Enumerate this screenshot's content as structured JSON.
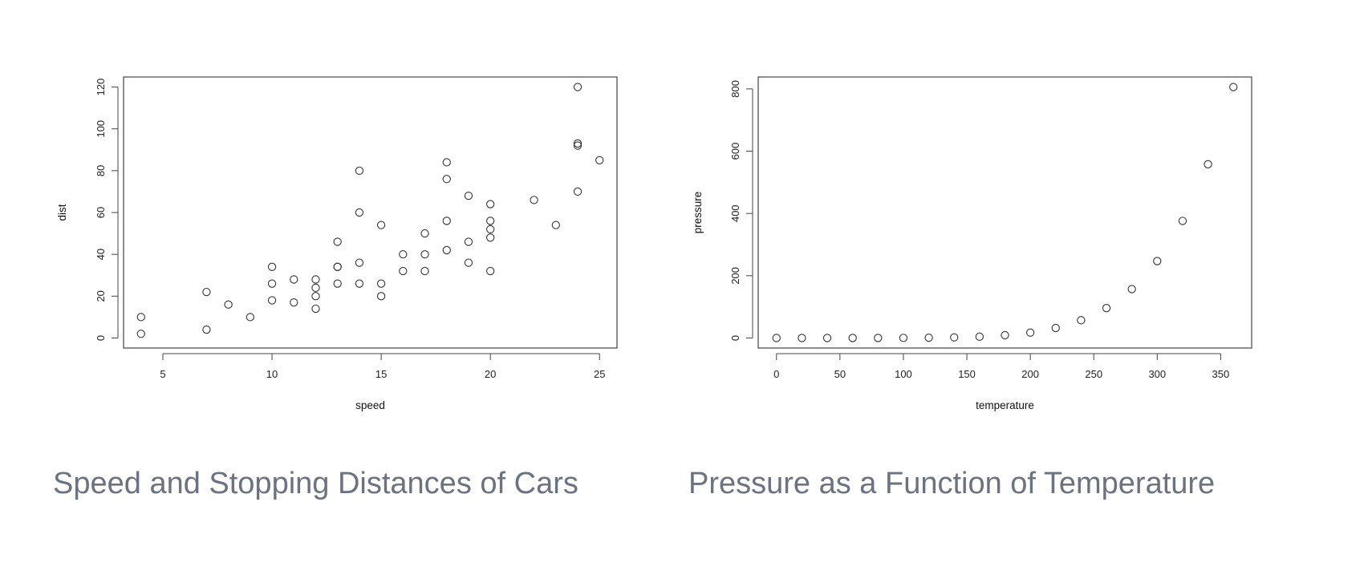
{
  "captions": {
    "left": "Speed and Stopping Distances of Cars",
    "right": "Pressure as a Function of Temperature"
  },
  "chart_data": [
    {
      "type": "scatter",
      "xlabel": "speed",
      "ylabel": "dist",
      "xlim": [
        3.2,
        25.8
      ],
      "ylim": [
        -4.8,
        124.8
      ],
      "xticks": [
        5,
        10,
        15,
        20,
        25
      ],
      "yticks": [
        0,
        20,
        40,
        60,
        80,
        100,
        120
      ],
      "grid": false,
      "x": [
        4,
        4,
        7,
        7,
        8,
        9,
        10,
        10,
        10,
        11,
        11,
        12,
        12,
        12,
        12,
        13,
        13,
        13,
        13,
        14,
        14,
        14,
        14,
        15,
        15,
        15,
        16,
        16,
        17,
        17,
        17,
        18,
        18,
        18,
        18,
        19,
        19,
        19,
        20,
        20,
        20,
        20,
        20,
        22,
        23,
        24,
        24,
        24,
        24,
        25
      ],
      "y": [
        2,
        10,
        4,
        22,
        16,
        10,
        18,
        26,
        34,
        17,
        28,
        14,
        20,
        24,
        28,
        26,
        34,
        34,
        46,
        26,
        36,
        60,
        80,
        20,
        26,
        54,
        32,
        40,
        32,
        40,
        50,
        42,
        56,
        76,
        84,
        36,
        46,
        68,
        32,
        48,
        52,
        56,
        64,
        66,
        54,
        70,
        92,
        93,
        120,
        85
      ]
    },
    {
      "type": "scatter",
      "xlabel": "temperature",
      "ylabel": "pressure",
      "xlim": [
        -14.4,
        374.4
      ],
      "ylim": [
        -32.3,
        838.3
      ],
      "xticks": [
        0,
        50,
        100,
        150,
        200,
        250,
        300,
        350
      ],
      "yticks": [
        0,
        200,
        400,
        600,
        800
      ],
      "grid": false,
      "x": [
        0,
        20,
        40,
        60,
        80,
        100,
        120,
        140,
        160,
        180,
        200,
        220,
        240,
        260,
        280,
        300,
        320,
        340,
        360
      ],
      "y": [
        0.0002,
        0.0012,
        0.006,
        0.03,
        0.09,
        0.27,
        0.75,
        1.85,
        4.2,
        8.8,
        17.3,
        32.1,
        57,
        96,
        157,
        247,
        376,
        558,
        806
      ]
    }
  ]
}
